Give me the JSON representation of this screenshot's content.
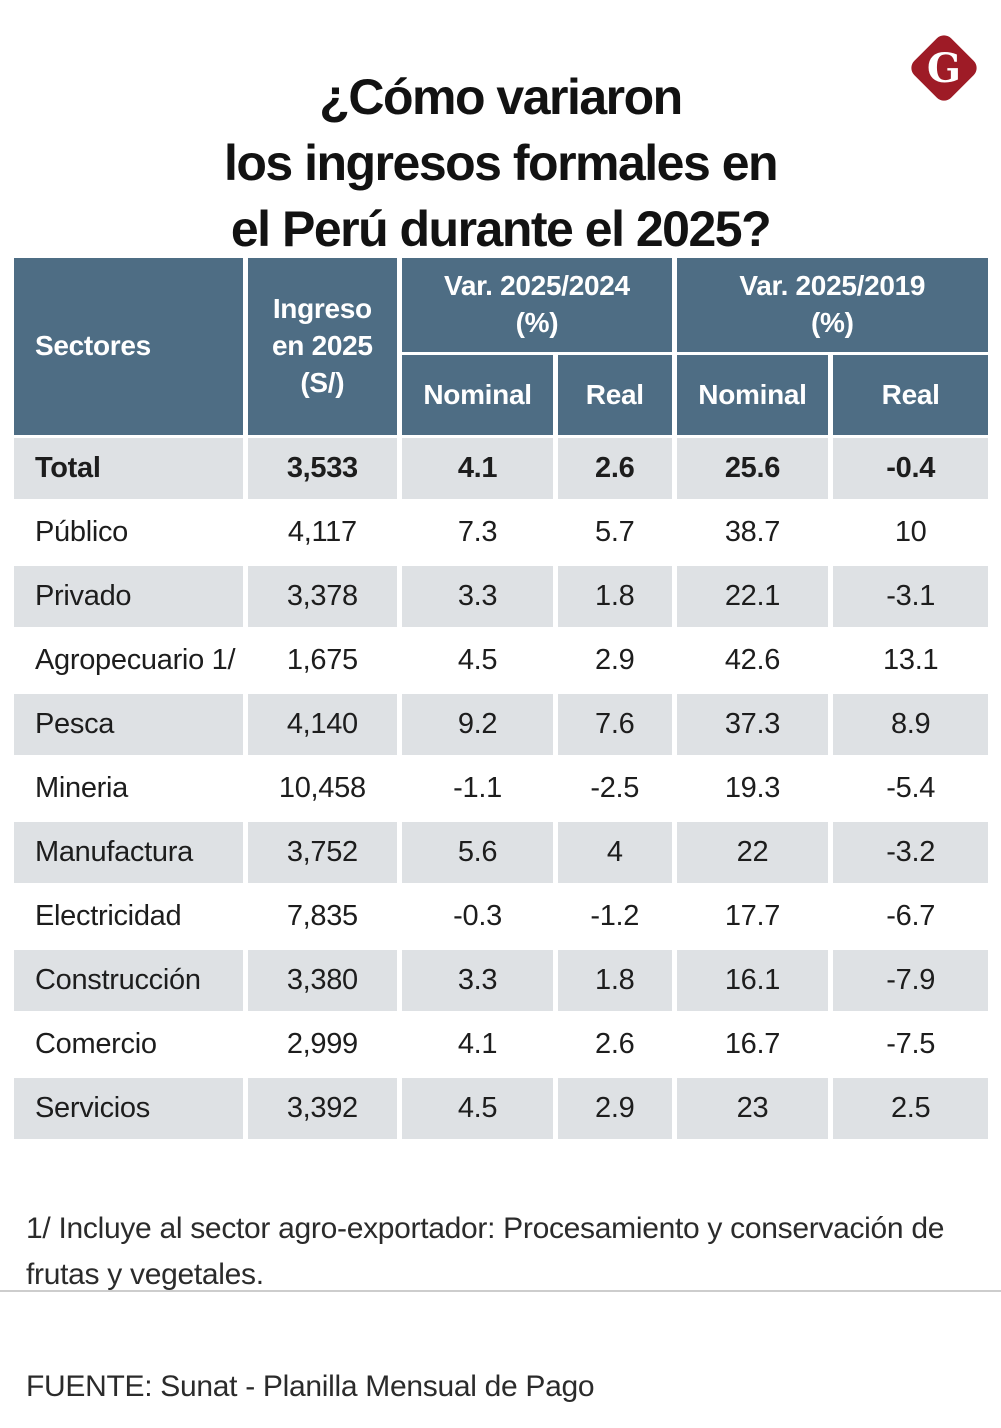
{
  "page": {
    "title": {
      "line1": "¿Cómo variaron",
      "line2": "los ingresos formales en",
      "line3": "el Perú durante el 2025?"
    },
    "logo_letter": "G",
    "footnote": "1/ Incluye al sector agro-exportador: Procesamiento y conservación de frutas y vegetales.",
    "source": "FUENTE: Sunat - Planilla Mensual de Pago"
  },
  "colors": {
    "header_bg": "#4E6D84",
    "row_shade": "#DEE1E4",
    "logo_red": "#9E1B26",
    "divider": "#CDCDCD"
  },
  "table": {
    "header": {
      "sectores": "Sectores",
      "ingreso_line1": "Ingreso",
      "ingreso_line2": "en 2025",
      "ingreso_line3": "(S/)",
      "group_2024_line1": "Var. 2025/2024",
      "group_2024_line2": "(%)",
      "group_2019_line1": "Var. 2025/2019",
      "group_2019_line2": "(%)",
      "sub_nominal": "Nominal",
      "sub_real": "Real"
    }
  },
  "chart_data": {
    "type": "table",
    "title": "¿Cómo variaron los ingresos formales en el Perú durante el 2025?",
    "columns": [
      "Sectores",
      "Ingreso en 2025 (S/)",
      "Var. 2025/2024 (%) Nominal",
      "Var. 2025/2024 (%) Real",
      "Var. 2025/2019 (%) Nominal",
      "Var. 2025/2019 (%) Real"
    ],
    "rows": [
      [
        "Total",
        "3,533",
        "4.1",
        "2.6",
        "25.6",
        "-0.4"
      ],
      [
        "Público",
        "4,117",
        "7.3",
        "5.7",
        "38.7",
        "10"
      ],
      [
        "Privado",
        "3,378",
        "3.3",
        "1.8",
        "22.1",
        "-3.1"
      ],
      [
        "Agropecuario 1/",
        "1,675",
        "4.5",
        "2.9",
        "42.6",
        "13.1"
      ],
      [
        "Pesca",
        "4,140",
        "9.2",
        "7.6",
        "37.3",
        "8.9"
      ],
      [
        "Mineria",
        "10,458",
        "-1.1",
        "-2.5",
        "19.3",
        "-5.4"
      ],
      [
        "Manufactura",
        "3,752",
        "5.6",
        "4",
        "22",
        "-3.2"
      ],
      [
        "Electricidad",
        "7,835",
        "-0.3",
        "-1.2",
        "17.7",
        "-6.7"
      ],
      [
        "Construcción",
        "3,380",
        "3.3",
        "1.8",
        "16.1",
        "-7.9"
      ],
      [
        "Comercio",
        "2,999",
        "4.1",
        "2.6",
        "16.7",
        "-7.5"
      ],
      [
        "Servicios",
        "3,392",
        "4.5",
        "2.9",
        "23",
        "2.5"
      ]
    ],
    "source": "FUENTE: Sunat - Planilla Mensual de Pago",
    "footnote": "1/ Incluye al sector agro-exportador: Procesamiento y conservación de frutas y vegetales."
  }
}
